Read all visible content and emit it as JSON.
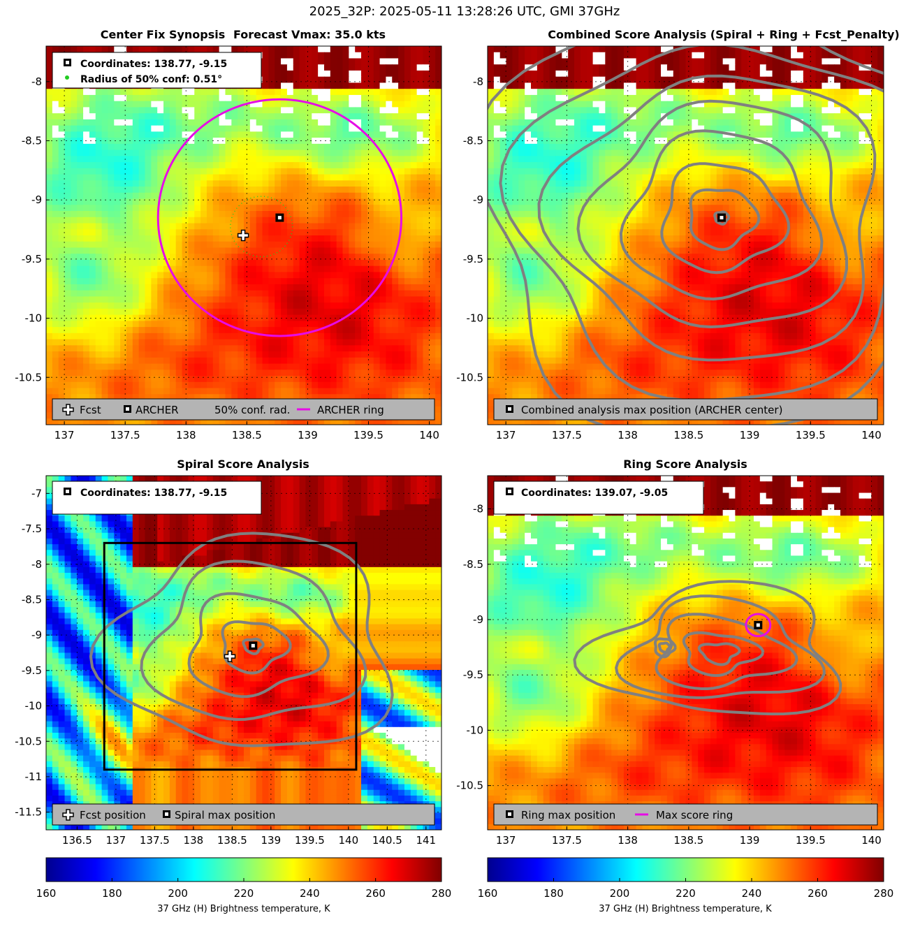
{
  "suptitle": "2025_32P: 2025-05-11 13:28:26 UTC, GMI 37GHz",
  "colors": {
    "archer_ring": "#e60ce6",
    "contour": "#808080",
    "conf_circle": "#22cc22",
    "legend_bg": "#b4b4b4"
  },
  "colorbars": [
    {
      "label": "37 GHz (H) Brightness temperature, K",
      "ticks": [
        "160",
        "180",
        "200",
        "220",
        "240",
        "260",
        "280"
      ],
      "range": [
        160,
        280
      ]
    },
    {
      "label": "37 GHz (H) Brightness temperature, K",
      "ticks": [
        "160",
        "180",
        "200",
        "220",
        "240",
        "260",
        "280"
      ],
      "range": [
        160,
        280
      ]
    }
  ],
  "chart_data": [
    {
      "type": "heatmap",
      "title_left": "Center Fix Synopsis",
      "title_right": "Forecast Vmax: 35.0 kts",
      "xlim": [
        136.85,
        140.1
      ],
      "ylim": [
        -10.9,
        -7.7
      ],
      "xticks": [
        "137",
        "137.5",
        "138",
        "138.5",
        "139",
        "139.5",
        "140"
      ],
      "yticks": [
        "-8",
        "-8.5",
        "-9",
        "-9.5",
        "-10",
        "-10.5"
      ],
      "info_lines": [
        "Coordinates: 138.77, -9.15",
        "Radius of 50% conf: 0.51°"
      ],
      "legend": [
        "Fcst",
        "ARCHER",
        "50% conf. rad.",
        "ARCHER ring"
      ],
      "archer_center": [
        138.77,
        -9.15
      ],
      "fcst_position": [
        138.47,
        -9.3
      ],
      "conf_radius_deg": 0.51,
      "ring_radius_deg": 1.0
    },
    {
      "type": "heatmap",
      "title": "Combined Score Analysis (Spiral + Ring + Fcst_Penalty)",
      "xlim": [
        136.85,
        140.1
      ],
      "ylim": [
        -10.9,
        -7.7
      ],
      "xticks": [
        "137",
        "137.5",
        "138",
        "138.5",
        "139",
        "139.5",
        "140"
      ],
      "yticks": [
        "-8",
        "-8.5",
        "-9",
        "-9.5",
        "-10",
        "-10.5"
      ],
      "legend": [
        "Combined analysis max position (ARCHER center)"
      ],
      "max_position": [
        138.77,
        -9.15
      ]
    },
    {
      "type": "heatmap",
      "title": "Spiral Score Analysis",
      "xlim": [
        136.1,
        141.2
      ],
      "ylim": [
        -11.75,
        -6.75
      ],
      "xticks": [
        "136.5",
        "137",
        "137.5",
        "138",
        "138.5",
        "139",
        "139.5",
        "140",
        "140.5",
        "141"
      ],
      "yticks": [
        "-7",
        "-7.5",
        "-8",
        "-8.5",
        "-9",
        "-9.5",
        "-10",
        "-10.5",
        "-11",
        "-11.5"
      ],
      "info_lines": [
        "Coordinates: 138.77, -9.15"
      ],
      "legend": [
        "Fcst position",
        "Spiral max position"
      ],
      "max_position": [
        138.77,
        -9.15
      ],
      "fcst_position": [
        138.47,
        -9.3
      ],
      "box": {
        "x": [
          136.85,
          140.1
        ],
        "y": [
          -10.9,
          -7.7
        ]
      }
    },
    {
      "type": "heatmap",
      "title": "Ring Score Analysis",
      "xlim": [
        136.85,
        140.1
      ],
      "ylim": [
        -10.9,
        -7.7
      ],
      "xticks": [
        "137",
        "137.5",
        "138",
        "138.5",
        "139",
        "139.5",
        "140"
      ],
      "yticks": [
        "-8",
        "-8.5",
        "-9",
        "-9.5",
        "-10",
        "-10.5"
      ],
      "info_lines": [
        "Coordinates: 139.07, -9.05"
      ],
      "legend": [
        "Ring max position",
        "Max score ring"
      ],
      "max_position": [
        139.07,
        -9.05
      ],
      "ring_radius_deg": 0.1
    }
  ]
}
